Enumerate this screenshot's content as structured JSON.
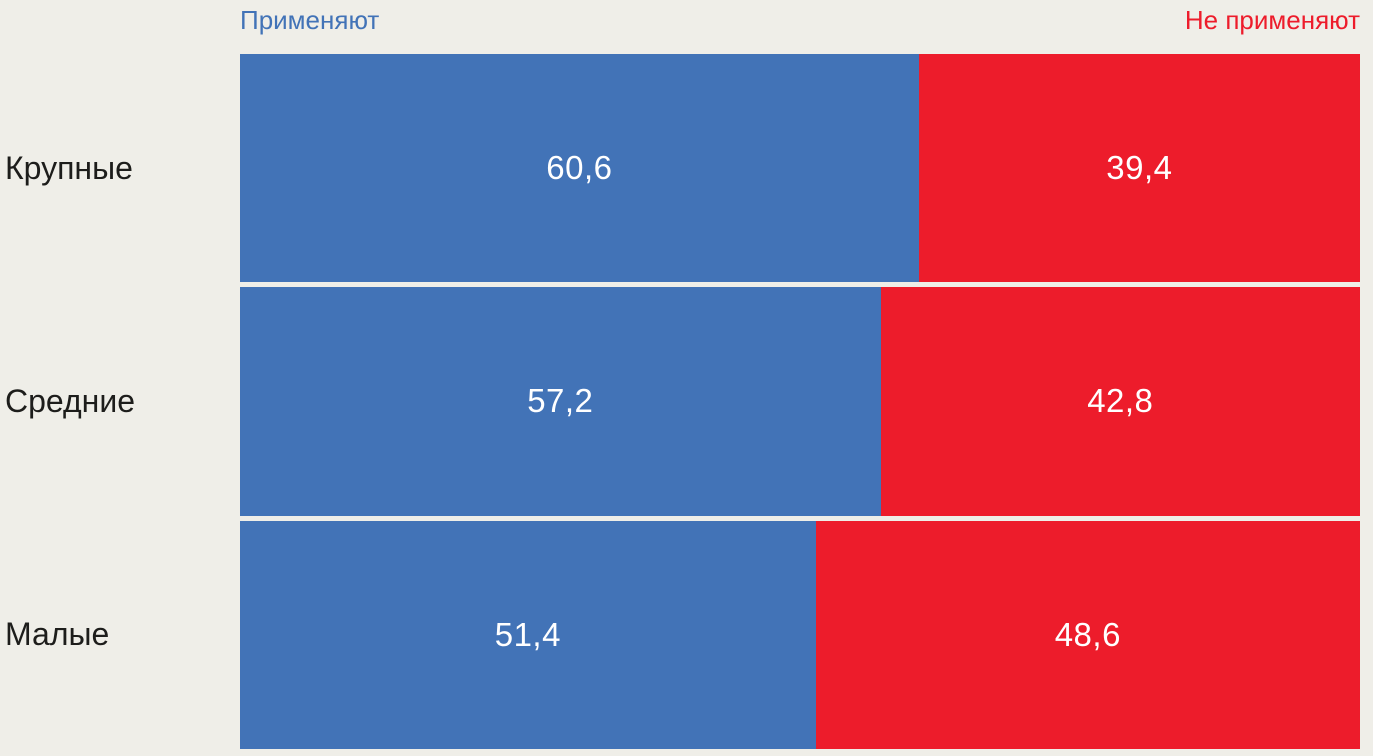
{
  "colors": {
    "apply": "#4273b7",
    "not_apply": "#ed1c2b",
    "background": "#efeee8",
    "category_text": "#1d1d1b",
    "value_text": "#ffffff"
  },
  "chart_data": {
    "type": "bar",
    "orientation": "horizontal",
    "stacked": true,
    "title": "",
    "xlabel": "",
    "ylabel": "",
    "xlim": [
      0,
      100
    ],
    "grid": false,
    "legend_position": "top",
    "categories": [
      "Крупные",
      "Средние",
      "Малые"
    ],
    "series": [
      {
        "name": "Применяют",
        "color": "#4273b7",
        "values": [
          60.6,
          57.2,
          51.4
        ]
      },
      {
        "name": "Не применяют",
        "color": "#ed1c2b",
        "values": [
          39.4,
          42.8,
          48.6
        ]
      }
    ],
    "value_labels": [
      [
        "60,6",
        "39,4"
      ],
      [
        "57,2",
        "42,8"
      ],
      [
        "51,4",
        "48,6"
      ]
    ]
  }
}
